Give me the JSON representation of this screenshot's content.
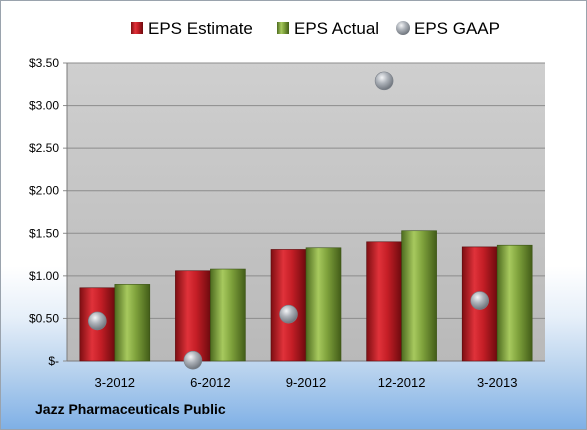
{
  "footer": {
    "company": "Jazz Pharmaceuticals Public"
  },
  "colors": {
    "estimate": "#c8202a",
    "actual": "#7da13a",
    "gaap": "#9aa0a8",
    "plot_bg": "#c4c4c4"
  },
  "chart_data": {
    "type": "bar",
    "title": "",
    "xlabel": "",
    "ylabel": "",
    "categories": [
      "3-2012",
      "6-2012",
      "9-2012",
      "12-2012",
      "3-2013"
    ],
    "series": [
      {
        "name": "EPS Estimate",
        "kind": "bar",
        "values": [
          0.86,
          1.06,
          1.31,
          1.4,
          1.34
        ]
      },
      {
        "name": "EPS Actual",
        "kind": "bar",
        "values": [
          0.9,
          1.08,
          1.33,
          1.53,
          1.36
        ]
      },
      {
        "name": "EPS GAAP",
        "kind": "scatter",
        "values": [
          0.47,
          0.01,
          0.55,
          3.29,
          0.71
        ]
      }
    ],
    "ylim": [
      0,
      3.5
    ],
    "yticks": [
      0,
      0.5,
      1.0,
      1.5,
      2.0,
      2.5,
      3.0,
      3.5
    ],
    "ytick_labels": [
      "$-",
      "$0.50",
      "$1.00",
      "$1.50",
      "$2.00",
      "$2.50",
      "$3.00",
      "$3.50"
    ],
    "grid": true,
    "legend_position": "top"
  }
}
